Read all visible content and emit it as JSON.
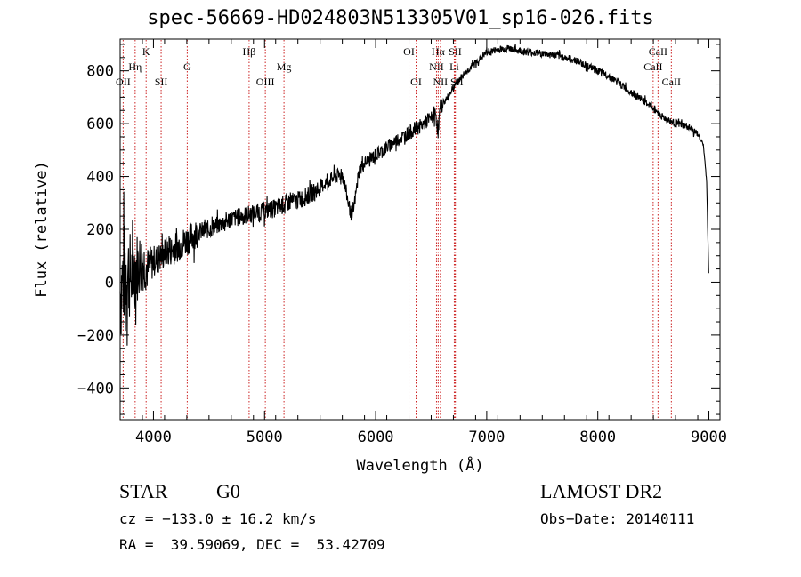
{
  "chart_data": {
    "type": "line",
    "title": "spec-56669-HD024803N513305V01_sp16-026.fits",
    "xlabel": "Wavelength (Å)",
    "ylabel": "Flux (relative)",
    "xlim": [
      3700,
      9100
    ],
    "ylim": [
      -520,
      920
    ],
    "xticks": [
      4000,
      5000,
      6000,
      7000,
      8000,
      9000
    ],
    "yticks": [
      -400,
      -200,
      0,
      200,
      400,
      600,
      800
    ],
    "xtick_labels": [
      "4000",
      "5000",
      "6000",
      "7000",
      "8000",
      "9000"
    ],
    "ytick_labels": [
      "−400",
      "−200",
      "0",
      "200",
      "400",
      "600",
      "800"
    ],
    "grid": false,
    "line_color": "#000000",
    "marker_color": "#cc2222",
    "series": [
      {
        "x": [
          3700,
          3750,
          3800,
          3850,
          3900,
          3950,
          4000,
          4050,
          4100,
          4200,
          4300,
          4400,
          4500,
          4600,
          4700,
          4800,
          4900,
          5000,
          5100,
          5200,
          5300,
          5400,
          5500,
          5600,
          5700,
          5760,
          5790,
          5850,
          5900,
          6000,
          6100,
          6200,
          6300,
          6400,
          6500,
          6540,
          6563,
          6580,
          6650,
          6700,
          6800,
          6900,
          7000,
          7100,
          7200,
          7300,
          7400,
          7500,
          7600,
          7700,
          7800,
          7900,
          8000,
          8100,
          8200,
          8300,
          8400,
          8500,
          8600,
          8700,
          8800,
          8900,
          8950,
          8980,
          9000
        ],
        "y": [
          -30,
          50,
          20,
          60,
          80,
          50,
          80,
          90,
          110,
          130,
          160,
          190,
          200,
          220,
          240,
          250,
          260,
          270,
          280,
          300,
          310,
          330,
          360,
          390,
          410,
          290,
          240,
          420,
          450,
          480,
          510,
          540,
          565,
          590,
          620,
          640,
          560,
          660,
          700,
          740,
          790,
          830,
          870,
          880,
          885,
          875,
          870,
          865,
          860,
          850,
          840,
          820,
          800,
          780,
          750,
          720,
          690,
          660,
          620,
          600,
          590,
          560,
          520,
          380,
          0
        ]
      }
    ],
    "line_markers": [
      {
        "label": "OII",
        "x": 3727,
        "row": 3
      },
      {
        "label": "Hη",
        "x": 3835,
        "row": 2
      },
      {
        "label": "K",
        "x": 3934,
        "row": 1
      },
      {
        "label": "SII",
        "x": 4069,
        "row": 3
      },
      {
        "label": "G",
        "x": 4304,
        "row": 2
      },
      {
        "label": "Hβ",
        "x": 4861,
        "row": 1
      },
      {
        "label": "OIII",
        "x": 5007,
        "row": 3
      },
      {
        "label": "Mg",
        "x": 5175,
        "row": 2
      },
      {
        "label": "OI",
        "x": 6300,
        "row": 1
      },
      {
        "label": "OI",
        "x": 6364,
        "row": 3
      },
      {
        "label": "NII",
        "x": 6548,
        "row": 2
      },
      {
        "label": "Hα",
        "x": 6563,
        "row": 1
      },
      {
        "label": "NII",
        "x": 6583,
        "row": 3
      },
      {
        "label": "SII",
        "x": 6716,
        "row": 1
      },
      {
        "label": "Li",
        "x": 6708,
        "row": 2
      },
      {
        "label": "SII",
        "x": 6731,
        "row": 3
      },
      {
        "label": "CaII",
        "x": 8498,
        "row": 2
      },
      {
        "label": "CaII",
        "x": 8542,
        "row": 1
      },
      {
        "label": "CaII",
        "x": 8662,
        "row": 3
      }
    ]
  },
  "info": {
    "class": "STAR",
    "subclass": "G0",
    "survey": "LAMOST DR2",
    "cz": "cz = −133.0 ± 16.2 km/s",
    "obs_date": "Obs−Date: 20140111",
    "coords": "RA =  39.59069, DEC =  53.42709"
  }
}
